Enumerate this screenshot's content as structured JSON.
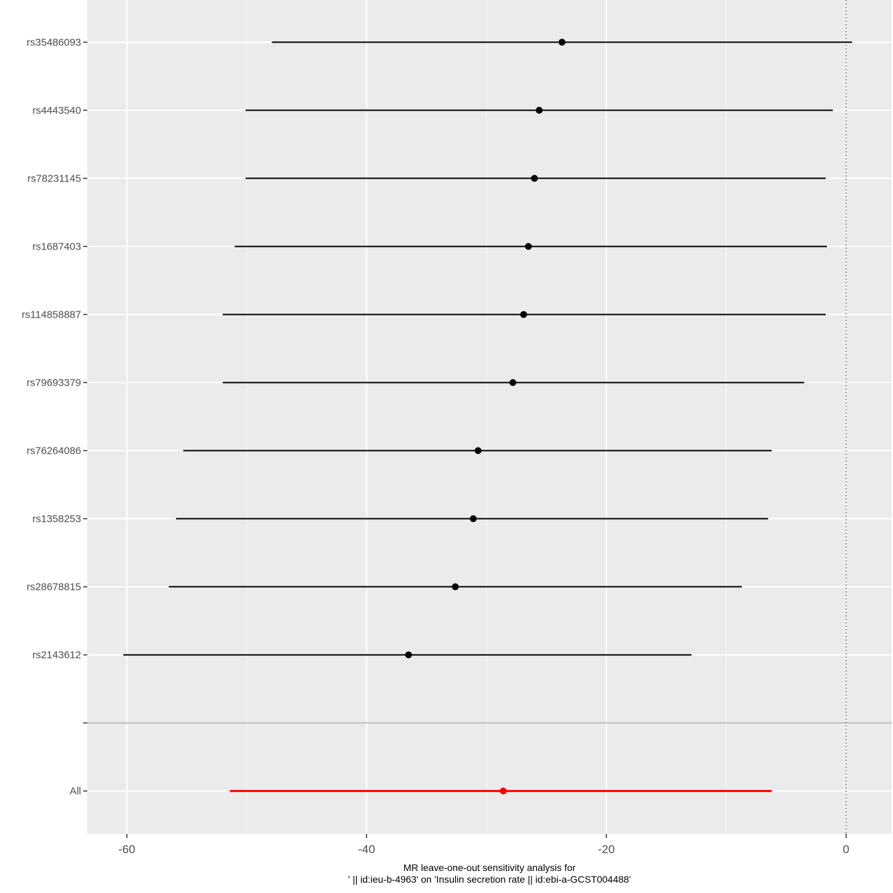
{
  "chart_data": {
    "type": "scatter",
    "subtype": "forest-plot",
    "xlabel": "MR leave-one-out sensitivity analysis for\n' || id:ieu-b-4963' on 'Insulin secretion rate || id:ebi-a-GCST004488'",
    "ylabel": "",
    "xlim": [
      -63.3,
      3.8
    ],
    "xticks": [
      -60,
      -40,
      -20,
      0
    ],
    "grid": true,
    "reference_line": {
      "x": 0,
      "style": "dotted",
      "color": "#777777"
    },
    "separator_category": "",
    "rows": [
      {
        "label": "rs35486093",
        "estimate": -23.7,
        "lower": -47.9,
        "upper": 0.5,
        "color": "#000000"
      },
      {
        "label": "rs4443540",
        "estimate": -25.6,
        "lower": -50.1,
        "upper": -1.1,
        "color": "#000000"
      },
      {
        "label": "rs78231145",
        "estimate": -26.0,
        "lower": -50.1,
        "upper": -1.7,
        "color": "#000000"
      },
      {
        "label": "rs1687403",
        "estimate": -26.5,
        "lower": -51.0,
        "upper": -1.6,
        "color": "#000000"
      },
      {
        "label": "rs114858887",
        "estimate": -26.9,
        "lower": -52.0,
        "upper": -1.7,
        "color": "#000000"
      },
      {
        "label": "rs79693379",
        "estimate": -27.8,
        "lower": -52.0,
        "upper": -3.5,
        "color": "#000000"
      },
      {
        "label": "rs76264086",
        "estimate": -30.7,
        "lower": -55.3,
        "upper": -6.2,
        "color": "#000000"
      },
      {
        "label": "rs1358253",
        "estimate": -31.1,
        "lower": -55.9,
        "upper": -6.5,
        "color": "#000000"
      },
      {
        "label": "rs28678815",
        "estimate": -32.6,
        "lower": -56.5,
        "upper": -8.7,
        "color": "#000000"
      },
      {
        "label": "rs2143612",
        "estimate": -36.5,
        "lower": -60.3,
        "upper": -12.9,
        "color": "#000000"
      },
      {
        "label": "",
        "estimate": null,
        "lower": null,
        "upper": null,
        "color": "#000000"
      },
      {
        "label": "All",
        "estimate": -28.6,
        "lower": -51.4,
        "upper": -6.2,
        "color": "#ff0000"
      }
    ]
  }
}
